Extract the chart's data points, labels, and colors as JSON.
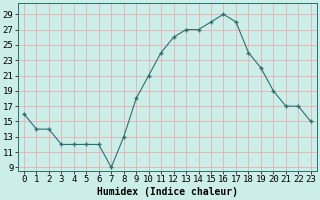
{
  "x": [
    0,
    1,
    2,
    3,
    4,
    5,
    6,
    7,
    8,
    9,
    10,
    11,
    12,
    13,
    14,
    15,
    16,
    17,
    18,
    19,
    20,
    21,
    22,
    23
  ],
  "y": [
    16,
    14,
    14,
    12,
    12,
    12,
    12,
    9,
    13,
    18,
    21,
    24,
    26,
    27,
    27,
    28,
    29,
    28,
    24,
    22,
    19,
    17,
    17,
    15
  ],
  "line_color": "#2d6e6e",
  "marker_color": "#2d6e6e",
  "bg_color": "#cceee8",
  "grid_color": "#e8b0b0",
  "xlabel": "Humidex (Indice chaleur)",
  "ylim_min": 8.5,
  "ylim_max": 30.5,
  "xlim_min": -0.5,
  "xlim_max": 23.5,
  "yticks": [
    9,
    11,
    13,
    15,
    17,
    19,
    21,
    23,
    25,
    27,
    29
  ],
  "xtick_labels": [
    "0",
    "1",
    "2",
    "3",
    "4",
    "5",
    "6",
    "7",
    "8",
    "9",
    "10",
    "11",
    "12",
    "13",
    "14",
    "15",
    "16",
    "17",
    "18",
    "19",
    "20",
    "21",
    "22",
    "23"
  ],
  "label_fontsize": 7,
  "tick_fontsize": 6.5
}
